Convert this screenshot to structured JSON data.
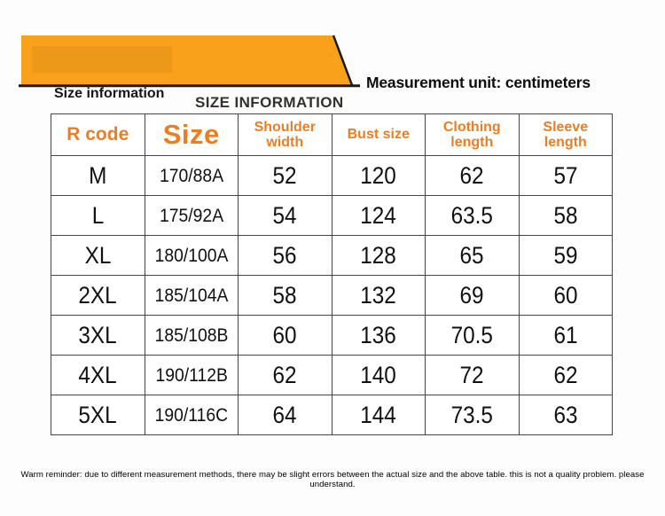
{
  "banner": {
    "label_left": "Size information",
    "label_right": "SIZE INFORMATION"
  },
  "unit_note": "Measurement unit: centimeters",
  "colors": {
    "banner_orange": "#F9A11B",
    "header_orange": "#ED7D21",
    "table_border": "#454545"
  },
  "table": {
    "headers": [
      "R code",
      "Size",
      "Shoulder\nwidth",
      "Bust size",
      "Clothing\nlength",
      "Sleeve\nlength"
    ],
    "rows": [
      [
        "M",
        "170/88A",
        "52",
        "120",
        "62",
        "57"
      ],
      [
        "L",
        "175/92A",
        "54",
        "124",
        "63.5",
        "58"
      ],
      [
        "XL",
        "180/100A",
        "56",
        "128",
        "65",
        "59"
      ],
      [
        "2XL",
        "185/104A",
        "58",
        "132",
        "69",
        "60"
      ],
      [
        "3XL",
        "185/108B",
        "60",
        "136",
        "70.5",
        "61"
      ],
      [
        "4XL",
        "190/112B",
        "62",
        "140",
        "72",
        "62"
      ],
      [
        "5XL",
        "190/116C",
        "64",
        "144",
        "73.5",
        "63"
      ]
    ]
  },
  "footer_note": "Warm reminder: due to different measurement methods, there may be slight errors between the actual size and the above table. this is not a quality problem. please understand."
}
